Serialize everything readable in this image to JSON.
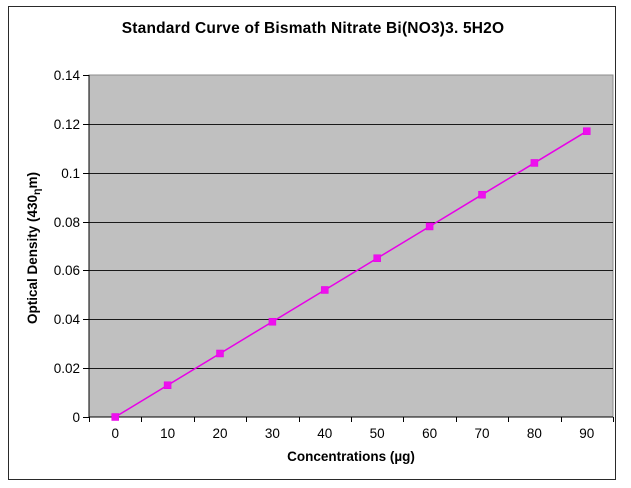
{
  "chart_data": {
    "type": "line",
    "title": "Standard Curve of Bismath Nitrate Bi(NO3)3. 5H2O",
    "xlabel": "Concentrations (µg)",
    "ylabel": "Optical Density (430ηm)",
    "ylabel_parts": {
      "prefix": "Optical Density (430",
      "subscript": "η",
      "suffix": "m)"
    },
    "categories": [
      "0",
      "10",
      "20",
      "30",
      "40",
      "50",
      "60",
      "70",
      "80",
      "90"
    ],
    "series": [
      {
        "name": "Optical Density",
        "values": [
          0,
          0.013,
          0.026,
          0.039,
          0.052,
          0.065,
          0.078,
          0.091,
          0.104,
          0.117
        ]
      }
    ],
    "ylim": [
      0,
      0.14
    ],
    "ytick_step": 0.02,
    "ytick_labels": [
      "0",
      "0.02",
      "0.04",
      "0.06",
      "0.08",
      "0.1",
      "0.12",
      "0.14"
    ],
    "grid": true,
    "legend": "none",
    "marker": "square",
    "colors": {
      "series_line": "#E800E8",
      "marker_fill": "#EE10EE",
      "plot_background": "#C0C0C0",
      "gridline": "#1a1a1a",
      "plot_border": "#8c8c8c",
      "axis_line": "#000000",
      "frame_border": "#2a2a2a",
      "text": "#000000",
      "page_background": "#FFFFFF"
    }
  }
}
